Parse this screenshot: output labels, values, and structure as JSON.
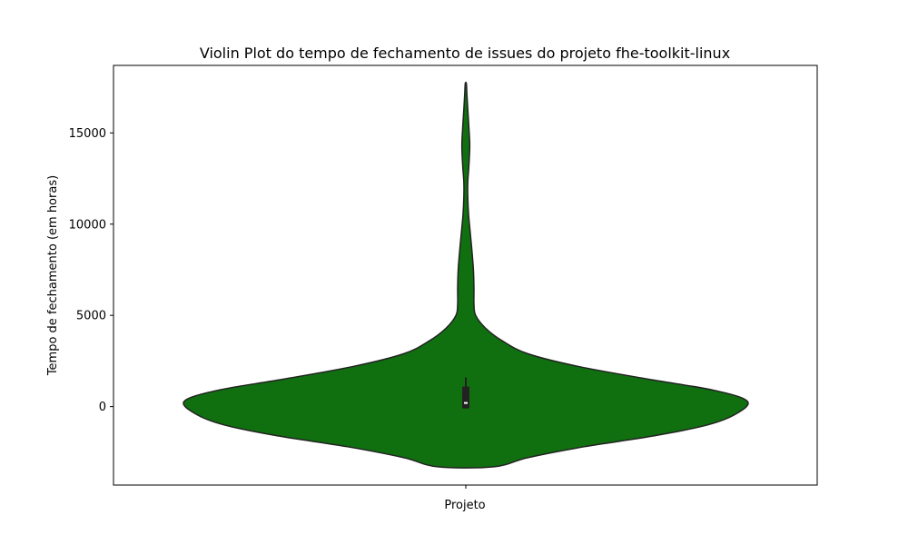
{
  "chart_data": {
    "type": "violin",
    "title": "Violin Plot do tempo de fechamento de issues do projeto fhe-toolkit-linux",
    "xlabel": "Projeto",
    "ylabel": "Tempo de fechamento (em horas)",
    "ylim": [
      -4300,
      18700
    ],
    "yticks": [
      0,
      5000,
      10000,
      15000
    ],
    "ytick_labels": [
      "0",
      "5000",
      "10000",
      "15000"
    ],
    "grid": false,
    "fill_color": "#107010",
    "edge_color": "#222222",
    "density_profile": [
      {
        "y": -3300,
        "halfwidth": 0.1
      },
      {
        "y": -2800,
        "halfwidth": 0.22
      },
      {
        "y": -2200,
        "halfwidth": 0.42
      },
      {
        "y": -1600,
        "halfwidth": 0.67
      },
      {
        "y": -1000,
        "halfwidth": 0.86
      },
      {
        "y": -400,
        "halfwidth": 0.96
      },
      {
        "y": 300,
        "halfwidth": 1.0
      },
      {
        "y": 900,
        "halfwidth": 0.88
      },
      {
        "y": 1500,
        "halfwidth": 0.65
      },
      {
        "y": 2200,
        "halfwidth": 0.4
      },
      {
        "y": 2900,
        "halfwidth": 0.22
      },
      {
        "y": 3600,
        "halfwidth": 0.13
      },
      {
        "y": 4300,
        "halfwidth": 0.07
      },
      {
        "y": 5000,
        "halfwidth": 0.035
      },
      {
        "y": 5600,
        "halfwidth": 0.029
      },
      {
        "y": 6500,
        "halfwidth": 0.029
      },
      {
        "y": 7500,
        "halfwidth": 0.027
      },
      {
        "y": 8500,
        "halfwidth": 0.022
      },
      {
        "y": 9500,
        "halfwidth": 0.016
      },
      {
        "y": 10500,
        "halfwidth": 0.01
      },
      {
        "y": 11500,
        "halfwidth": 0.007
      },
      {
        "y": 12300,
        "halfwidth": 0.007
      },
      {
        "y": 13200,
        "halfwidth": 0.011
      },
      {
        "y": 14300,
        "halfwidth": 0.014
      },
      {
        "y": 15300,
        "halfwidth": 0.011
      },
      {
        "y": 16300,
        "halfwidth": 0.007
      },
      {
        "y": 17100,
        "halfwidth": 0.004
      },
      {
        "y": 17700,
        "halfwidth": 0.002
      }
    ],
    "box": {
      "q1": -100,
      "median": 200,
      "q3": 1100,
      "whisker_low": -100,
      "whisker_high": 1600
    }
  }
}
